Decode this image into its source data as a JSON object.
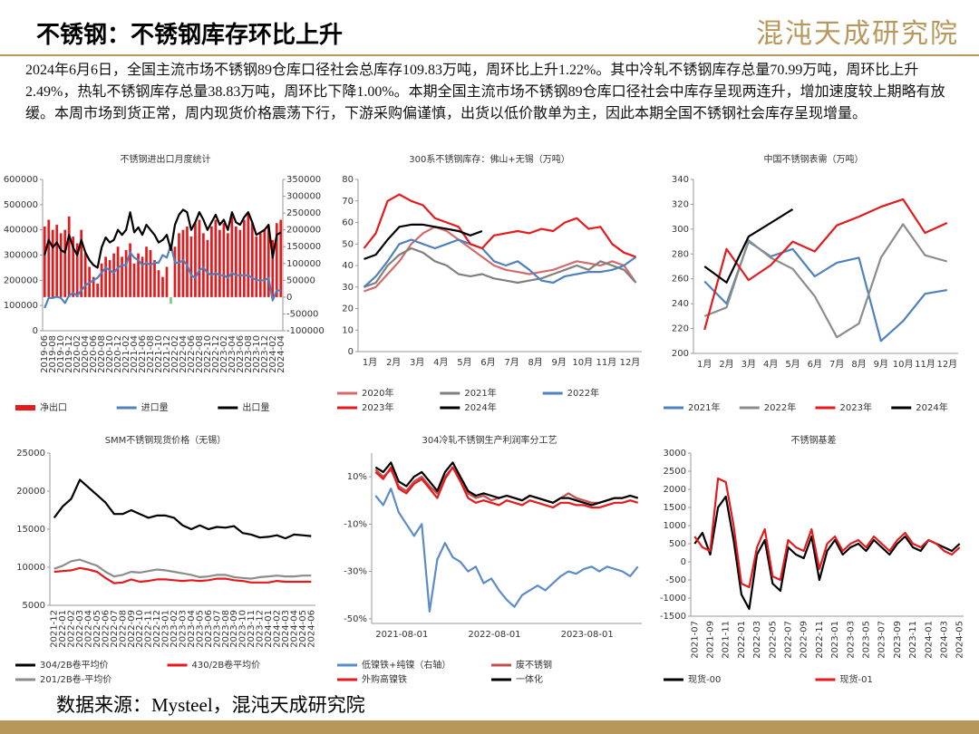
{
  "header": {
    "title": "不锈钢：不锈钢库存环比上升",
    "logo": "混沌天成研究院"
  },
  "summary": "2024年6月6日，全国主流市场不锈钢89仓库口径社会总库存109.83万吨，周环比上升1.22%。其中冷轧不锈钢库存总量70.99万吨，周环比上升2.49%，热轧不锈钢库存总量38.83万吨，周环比下降1.00%。本期全国主流市场不锈钢89仓库口径社会中库存呈现两连升，增加速度较上期略有放缓。本周市场到货正常，周内现货价格震荡下行，下游采购偏谨慎，出货以低价散单为主，因此本期全国不锈钢社会库存呈现增量。",
  "source": "数据来源：Mysteel，混沌天成研究院",
  "chart_data": [
    {
      "type": "combo",
      "title": "不锈钢进出口月度统计",
      "categories": [
        "2019-06",
        null,
        "2019-08",
        null,
        "2019-10",
        null,
        "2019-12",
        null,
        "2020-02",
        null,
        "2020-04",
        null,
        "2020-06",
        null,
        "2020-08",
        null,
        "2020-10",
        null,
        "2020-12",
        null,
        "2021-02",
        null,
        "2021-04",
        null,
        "2021-06",
        null,
        "2021-08",
        null,
        "2021-10",
        null,
        "2021-12",
        null,
        "2022-02",
        null,
        "2022-04",
        null,
        "2022-06",
        null,
        "2022-08",
        null,
        "2022-10",
        null,
        "2022-12",
        null,
        "2023-02",
        null,
        "2023-04",
        null,
        "2023-06",
        null,
        "2023-08",
        null,
        "2023-10",
        null,
        "2023-12",
        null,
        "2024-02",
        null,
        "2024-04"
      ],
      "series": [
        {
          "name": "净出口",
          "type": "bar",
          "axis": "y2",
          "color": "#e41a1c",
          "values": [
            210000,
            230000,
            200000,
            215000,
            190000,
            200000,
            240000,
            180000,
            160000,
            200000,
            130000,
            90000,
            60000,
            40000,
            100000,
            120000,
            110000,
            130000,
            150000,
            120000,
            140000,
            160000,
            100000,
            130000,
            120000,
            150000,
            140000,
            110000,
            80000,
            60000,
            90000,
            -20000,
            150000,
            190000,
            200000,
            210000,
            180000,
            220000,
            230000,
            190000,
            170000,
            210000,
            230000,
            200000,
            220000,
            190000,
            240000,
            210000,
            200000,
            230000,
            250000,
            220000,
            180000,
            190000,
            200000,
            210000,
            170000,
            220000,
            230000
          ]
        },
        {
          "name": "进口量",
          "type": "line",
          "color": "#4f81bd",
          "values": [
            90000,
            130000,
            130000,
            135000,
            130000,
            110000,
            140000,
            150000,
            140000,
            160000,
            180000,
            190000,
            200000,
            210000,
            230000,
            250000,
            240000,
            230000,
            250000,
            260000,
            260000,
            310000,
            290000,
            280000,
            260000,
            270000,
            260000,
            270000,
            270000,
            300000,
            290000,
            340000,
            270000,
            270000,
            280000,
            260000,
            220000,
            210000,
            240000,
            250000,
            230000,
            220000,
            230000,
            220000,
            220000,
            210000,
            230000,
            220000,
            220000,
            220000,
            220000,
            210000,
            200000,
            200000,
            200000,
            210000,
            120000,
            160000,
            160000
          ]
        },
        {
          "name": "出口量",
          "type": "line",
          "color": "#000000",
          "values": [
            300000,
            360000,
            330000,
            350000,
            320000,
            310000,
            380000,
            330000,
            300000,
            360000,
            310000,
            280000,
            260000,
            250000,
            330000,
            370000,
            350000,
            360000,
            400000,
            380000,
            400000,
            470000,
            390000,
            410000,
            380000,
            420000,
            400000,
            380000,
            350000,
            360000,
            380000,
            320000,
            420000,
            460000,
            480000,
            470000,
            400000,
            430000,
            470000,
            440000,
            400000,
            430000,
            460000,
            420000,
            440000,
            400000,
            470000,
            430000,
            420000,
            450000,
            470000,
            430000,
            380000,
            390000,
            400000,
            420000,
            290000,
            380000,
            390000
          ]
        }
      ],
      "negative_color": "#7fc97f",
      "ylim": [
        0,
        600000
      ],
      "yticks": [
        0,
        100000,
        200000,
        300000,
        400000,
        500000,
        600000
      ],
      "y2lim": [
        -100000,
        350000
      ],
      "y2ticks": [
        -100000,
        -50000,
        0,
        50000,
        100000,
        150000,
        200000,
        250000,
        300000,
        350000
      ],
      "legend": "bottom"
    },
    {
      "type": "line",
      "title": "300系不锈钢库存：佛山+无锡（万吨）",
      "categories": [
        "1月",
        null,
        "2月",
        null,
        "3月",
        null,
        "4月",
        null,
        "5月",
        null,
        "6月",
        null,
        "7月",
        null,
        "8月",
        null,
        "9月",
        null,
        "10月",
        null,
        "11月",
        null,
        "12月",
        null
      ],
      "series": [
        {
          "name": "2020年",
          "color": "#d46a6a",
          "values": [
            28,
            30,
            36,
            42,
            50,
            55,
            58,
            56,
            52,
            48,
            44,
            40,
            38,
            37,
            36,
            37,
            38,
            40,
            42,
            41,
            40,
            42,
            40,
            32
          ]
        },
        {
          "name": "2021年",
          "color": "#808080",
          "values": [
            30,
            32,
            40,
            45,
            48,
            46,
            42,
            40,
            36,
            35,
            36,
            34,
            33,
            32,
            33,
            34,
            36,
            38,
            40,
            38,
            42,
            40,
            38,
            32
          ]
        },
        {
          "name": "2022年",
          "color": "#4f81bd",
          "values": [
            30,
            35,
            42,
            50,
            52,
            50,
            48,
            50,
            52,
            50,
            48,
            42,
            40,
            42,
            38,
            33,
            32,
            35,
            36,
            37,
            37,
            38,
            40,
            44
          ]
        },
        {
          "name": "2023年",
          "color": "#e41a1c",
          "values": [
            48,
            55,
            70,
            73,
            70,
            68,
            62,
            60,
            58,
            50,
            48,
            54,
            55,
            56,
            55,
            57,
            56,
            60,
            62,
            57,
            58,
            50,
            46,
            44
          ]
        },
        {
          "name": "2024年",
          "color": "#000000",
          "values": [
            43,
            45,
            52,
            58,
            59,
            59,
            58,
            57,
            56,
            54,
            56,
            null,
            null,
            null,
            null,
            null,
            null,
            null,
            null,
            null,
            null,
            null,
            null,
            null
          ]
        }
      ],
      "ylim": [
        0,
        80
      ],
      "yticks": [
        0,
        10,
        20,
        30,
        40,
        50,
        60,
        70,
        80
      ],
      "legend": "bottom"
    },
    {
      "type": "line",
      "title": "中国不锈钢表需（万吨）",
      "categories": [
        "1月",
        "2月",
        "3月",
        "4月",
        "5月",
        "6月",
        "7月",
        "8月",
        "9月",
        "10月",
        "11月",
        "12月"
      ],
      "series": [
        {
          "name": "2021年",
          "color": "#4f81bd",
          "values": [
            258,
            240,
            290,
            278,
            284,
            262,
            273,
            277,
            210,
            226,
            248,
            251
          ]
        },
        {
          "name": "2022年",
          "color": "#8c8c8c",
          "values": [
            230,
            237,
            291,
            277,
            268,
            246,
            213,
            224,
            277,
            304,
            279,
            274
          ]
        },
        {
          "name": "2023年",
          "color": "#e41a1c",
          "values": [
            219,
            284,
            259,
            271,
            290,
            282,
            303,
            310,
            318,
            324,
            297,
            305
          ]
        },
        {
          "name": "2024年",
          "color": "#000000",
          "values": [
            270,
            257,
            294,
            305,
            316,
            null,
            null,
            null,
            null,
            null,
            null,
            null
          ]
        }
      ],
      "ylim": [
        200,
        340
      ],
      "yticks": [
        200,
        220,
        240,
        260,
        280,
        300,
        320,
        340
      ],
      "legend": "bottom"
    },
    {
      "type": "line",
      "title": "SMM不锈钢现货价格（无锡）",
      "categories": [
        "2021-12",
        "2022-01",
        "2022-02",
        "2022-03",
        "2022-04",
        "2022-05",
        "2022-06",
        "2022-07",
        "2022-08",
        "2022-09",
        "2022-10",
        "2022-11",
        "2022-12",
        "2023-01",
        "2023-02",
        "2023-03",
        "2023-04",
        "2023-05",
        "2023-06",
        "2023-07",
        "2023-08",
        "2023-09",
        "2023-10",
        "2023-11",
        "2023-12",
        "2024-01",
        "2024-02",
        "2024-03",
        "2024-04",
        "2024-05",
        "2024-06"
      ],
      "series": [
        {
          "name": "304/2B卷平均价",
          "color": "#000000",
          "values": [
            16500,
            18000,
            19000,
            21500,
            20500,
            19500,
            18500,
            17000,
            17000,
            17500,
            17000,
            16500,
            16800,
            16800,
            16500,
            15500,
            15000,
            15500,
            15000,
            15300,
            15200,
            15400,
            14500,
            14300,
            13900,
            14000,
            14200,
            13800,
            14300,
            14200,
            14100
          ]
        },
        {
          "name": "430/2B卷平均价",
          "color": "#e41a1c",
          "values": [
            9400,
            9500,
            9600,
            9900,
            9700,
            9400,
            8600,
            7900,
            8000,
            8400,
            8100,
            8200,
            8400,
            8400,
            8300,
            8200,
            8300,
            8200,
            8300,
            8500,
            8500,
            8300,
            8200,
            8000,
            8000,
            8000,
            8200,
            8100,
            8100,
            8100,
            8100
          ]
        },
        {
          "name": "201/2B卷-平均价",
          "color": "#8c8c8c",
          "values": [
            9800,
            10200,
            10800,
            11000,
            10600,
            10200,
            9400,
            8800,
            9000,
            9400,
            9300,
            9500,
            9700,
            9600,
            9400,
            9200,
            9000,
            8700,
            8800,
            9000,
            9000,
            8700,
            8600,
            8500,
            8700,
            8800,
            8900,
            8800,
            8800,
            8900,
            8900
          ]
        }
      ],
      "ylim": [
        5000,
        25000
      ],
      "yticks": [
        5000,
        10000,
        15000,
        20000,
        25000
      ],
      "legend": "bottom"
    },
    {
      "type": "line",
      "title": "304冷轧不锈钢生产利润率分工艺",
      "categories": [
        "2021-08-01",
        null,
        null,
        null,
        null,
        null,
        null,
        null,
        null,
        null,
        null,
        null,
        "2022-08-01",
        null,
        null,
        null,
        null,
        null,
        null,
        null,
        null,
        null,
        null,
        null,
        "2023-08-01",
        null,
        null,
        null,
        null,
        null,
        null,
        null,
        null,
        null,
        null
      ],
      "series": [
        {
          "name": "低镍铁+纯镍（右轴）",
          "color": "#5b8cc6",
          "values": [
            2,
            -2,
            5,
            -5,
            -10,
            -15,
            -10,
            -47,
            -25,
            -18,
            -24,
            -26,
            -30,
            -28,
            -35,
            -33,
            -38,
            -42,
            -45,
            -40,
            -38,
            -36,
            -38,
            -35,
            -32,
            -30,
            -31,
            -29,
            -28,
            -30,
            -28,
            -29,
            -30,
            -32,
            -28
          ]
        },
        {
          "name": "废不锈钢",
          "color": "#c0504d",
          "values": [
            13,
            10,
            13,
            6,
            4,
            8,
            10,
            6,
            3,
            10,
            14,
            9,
            3,
            1,
            2,
            0,
            1,
            2,
            1,
            0,
            2,
            1,
            0,
            -1,
            1,
            3,
            1,
            0,
            -1,
            -1,
            0,
            1,
            1,
            2,
            1
          ]
        },
        {
          "name": "外购高镍铁",
          "color": "#e41a1c",
          "values": [
            12,
            9,
            14,
            5,
            3,
            7,
            9,
            5,
            1,
            9,
            14,
            8,
            1,
            -1,
            0,
            -1,
            -2,
            0,
            -1,
            -2,
            0,
            -1,
            -2,
            -3,
            -1,
            -1,
            -2,
            -2,
            -3,
            -3,
            -2,
            -1,
            -1,
            0,
            -1
          ]
        },
        {
          "name": "一体化",
          "color": "#000000",
          "values": [
            14,
            12,
            16,
            8,
            6,
            10,
            12,
            8,
            4,
            12,
            16,
            10,
            4,
            2,
            3,
            2,
            1,
            2,
            1,
            0,
            2,
            1,
            0,
            -1,
            1,
            1,
            0,
            -1,
            -2,
            -1,
            0,
            1,
            1,
            2,
            1
          ]
        }
      ],
      "ylim": [
        -52,
        20
      ],
      "yticks": [
        {
          "value": 10,
          "label": "10%"
        },
        {
          "value": -10,
          "label": "-10%"
        },
        {
          "value": -30,
          "label": "-30%"
        },
        {
          "value": -50,
          "label": "-50%"
        }
      ],
      "legend": "bottom"
    },
    {
      "type": "line",
      "title": "不锈钢基差",
      "categories": [
        "2021-07",
        null,
        "2021-09",
        null,
        "2021-11",
        null,
        "2022-01",
        null,
        "2022-03",
        null,
        "2022-05",
        null,
        "2022-07",
        null,
        "2022-09",
        null,
        "2022-11",
        null,
        "2023-01",
        null,
        "2023-03",
        null,
        "2023-05",
        null,
        "2023-07",
        null,
        "2023-09",
        null,
        "2023-11",
        null,
        "2024-01",
        null,
        "2024-03",
        null,
        "2024-05"
      ],
      "series": [
        {
          "name": "现货-00",
          "color": "#000000",
          "values": [
            500,
            800,
            200,
            1500,
            1800,
            600,
            -900,
            -1300,
            200,
            600,
            -600,
            -800,
            400,
            200,
            100,
            700,
            -500,
            300,
            600,
            200,
            400,
            500,
            300,
            600,
            400,
            200,
            500,
            700,
            400,
            300,
            600,
            500,
            400,
            300,
            500
          ]
        },
        {
          "name": "现货-01",
          "color": "#e41a1c",
          "values": [
            700,
            400,
            300,
            2300,
            2200,
            1000,
            -600,
            -700,
            400,
            900,
            -400,
            -500,
            600,
            400,
            300,
            900,
            -200,
            500,
            700,
            300,
            500,
            600,
            400,
            700,
            500,
            300,
            600,
            800,
            500,
            400,
            600,
            500,
            300,
            200,
            400
          ]
        }
      ],
      "ylim": [
        -1500,
        3000
      ],
      "yticks": [
        -1500,
        -1000,
        -500,
        0,
        500,
        1000,
        1500,
        2000,
        2500,
        3000
      ],
      "legend": "bottom"
    }
  ]
}
